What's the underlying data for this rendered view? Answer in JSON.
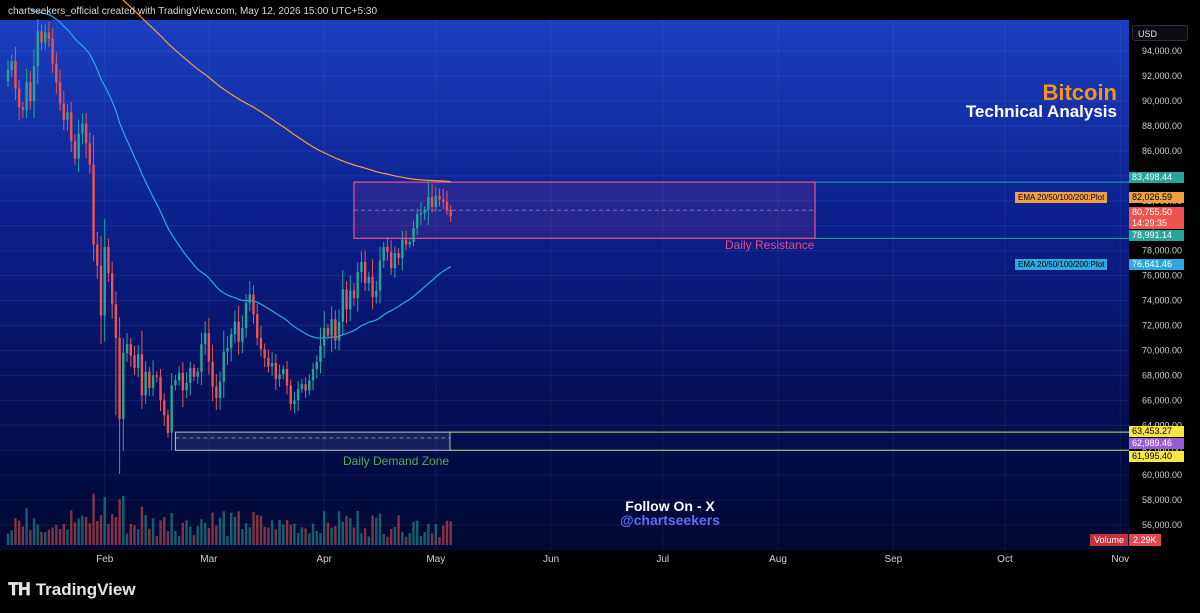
{
  "attribution": "chartseekers_official created with TradingView.com, May 12, 2026 15:00 UTC+5:30",
  "brand": "TradingView",
  "currency": "USD",
  "title": "Bitcoin",
  "subtitle": "Technical Analysis",
  "follow_line1": "Follow On - X",
  "follow_line2": "@chartseekers",
  "colors": {
    "up": "#26a69a",
    "down": "#ef5350",
    "resistance": "#e84a8c",
    "demand": "#c8e85a",
    "ema_fast": "#2ea9e0",
    "ema_slow": "#f0a040",
    "title": "#f7931a"
  },
  "chart_data": {
    "type": "candlestick",
    "x_labels": [
      "Feb",
      "Mar",
      "Apr",
      "May",
      "Jun",
      "Jul",
      "Aug",
      "Sep",
      "Oct",
      "Nov"
    ],
    "x_label_dates": [
      "2026-02-01",
      "2026-03-01",
      "2026-04-01",
      "2026-05-01",
      "2026-06-01",
      "2026-07-01",
      "2026-08-01",
      "2026-09-01",
      "2026-10-01",
      "2026-11-01"
    ],
    "y_ticks": [
      "56,000.00",
      "58,000.00",
      "60,000.00",
      "62,000.00",
      "64,000.00",
      "66,000.00",
      "68,000.00",
      "70,000.00",
      "72,000.00",
      "74,000.00",
      "76,000.00",
      "78,000.00",
      "80,000.00",
      "82,000.00",
      "84,000.00",
      "86,000.00",
      "88,000.00",
      "90,000.00",
      "92,000.00",
      "94,000.00"
    ],
    "y_range": [
      54000,
      96500
    ],
    "closes": [
      92500,
      93200,
      91000,
      89500,
      89300,
      91500,
      90000,
      92800,
      95600,
      94700,
      95500,
      95000,
      93000,
      91500,
      89800,
      88500,
      89100,
      86800,
      85400,
      87400,
      88200,
      86600,
      84900,
      78500,
      76800,
      72800,
      78300,
      76200,
      73700,
      71000,
      64500,
      69800,
      70500,
      69600,
      68600,
      69700,
      66400,
      68300,
      67000,
      68000,
      67900,
      66000,
      64800,
      63400,
      67200,
      67600,
      68200,
      66800,
      67400,
      68600,
      67900,
      68300,
      70500,
      71400,
      69100,
      67100,
      66200,
      67500,
      69900,
      70200,
      71300,
      72300,
      70700,
      71800,
      73800,
      74500,
      72900,
      71000,
      70100,
      69400,
      68700,
      69000,
      67700,
      68100,
      68500,
      67200,
      65700,
      66000,
      66900,
      67300,
      66800,
      67600,
      68500,
      69100,
      70400,
      71800,
      71200,
      72500,
      70800,
      72300,
      74900,
      73300,
      74800,
      74200,
      76300,
      77100,
      75400,
      75900,
      74300,
      74800,
      77200,
      78300,
      77900,
      76600,
      77800,
      77400,
      78900,
      78500,
      78700,
      79800,
      80900,
      81000,
      81300,
      82300,
      81500,
      82400,
      82100,
      81900,
      81300,
      80755.5
    ],
    "volume_label": "Volume",
    "volume_value": "2.29K",
    "ema_label": "EMA 20/50/100/200:Plot",
    "ema_fast_value": "76,641.46",
    "ema_slow_value": "82,026.59",
    "last_price": "80,755.50",
    "countdown": "14:29:35",
    "resistance_zone": {
      "label": "Daily Resistance",
      "top": 83498.44,
      "bottom": 78991.14,
      "top_label": "83,498.44",
      "bottom_label": "78,991.14"
    },
    "demand_zone": {
      "label": "Daily Demand Zone",
      "top": 63453.27,
      "mid": 62989.46,
      "bottom": 61995.4,
      "top_label": "63,453.27",
      "mid_label": "62,989.46",
      "bottom_label": "61,995.40"
    }
  }
}
